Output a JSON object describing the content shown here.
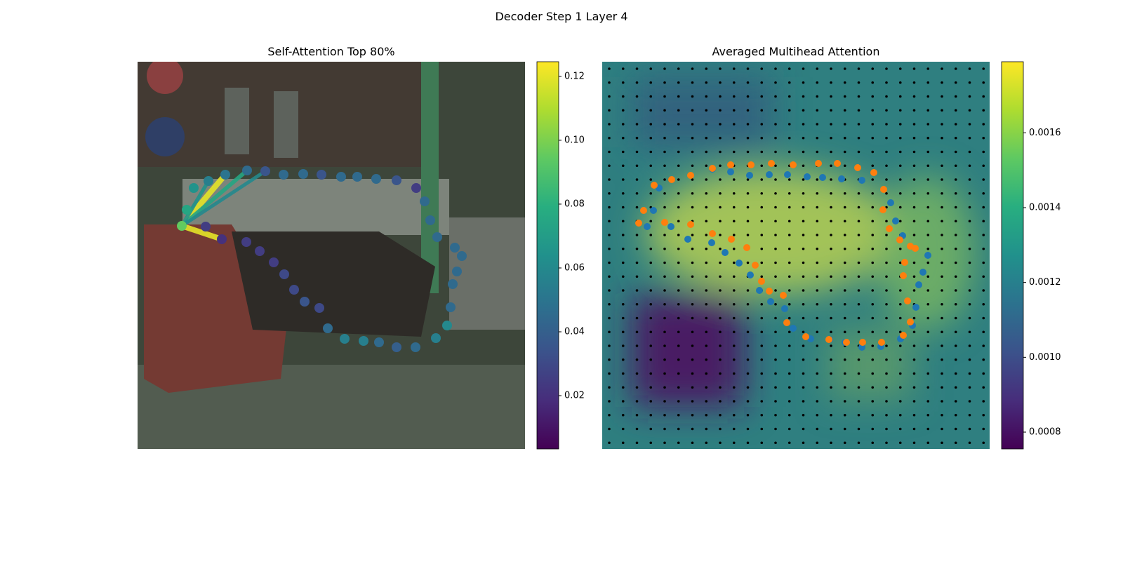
{
  "title": "Decoder Step 1 Layer 4",
  "chart_data": [
    {
      "type": "attention-scatter",
      "title": "Self-Attention Top 80%",
      "xlim": [
        0,
        552
      ],
      "ylim": [
        552,
        0
      ],
      "x": [
        63,
        70,
        80,
        101,
        125,
        156,
        182,
        208,
        236,
        262,
        290,
        313,
        340,
        369,
        397,
        409,
        417,
        427,
        452,
        462,
        455,
        449,
        446,
        441,
        425,
        396,
        369,
        344,
        322,
        295,
        271,
        259,
        238,
        223,
        209,
        194,
        174,
        155,
        120,
        97
      ],
      "y": [
        234,
        211,
        180,
        170,
        161,
        155,
        156,
        161,
        160,
        161,
        164,
        164,
        167,
        169,
        180,
        199,
        226,
        250,
        265,
        277,
        299,
        317,
        350,
        376,
        394,
        407,
        407,
        400,
        398,
        395,
        380,
        351,
        342,
        325,
        303,
        286,
        270,
        257,
        253,
        235
      ],
      "values": [
        0.095,
        0.075,
        0.065,
        0.055,
        0.05,
        0.045,
        0.035,
        0.045,
        0.045,
        0.035,
        0.045,
        0.045,
        0.045,
        0.035,
        0.025,
        0.045,
        0.045,
        0.045,
        0.045,
        0.045,
        0.045,
        0.045,
        0.045,
        0.06,
        0.055,
        0.045,
        0.04,
        0.045,
        0.055,
        0.055,
        0.045,
        0.03,
        0.035,
        0.03,
        0.03,
        0.025,
        0.025,
        0.025,
        0.02,
        0.025
      ],
      "edges": [
        {
          "to": 38,
          "value": 0.12
        },
        {
          "to": 4,
          "value": 0.12
        },
        {
          "to": 5,
          "value": 0.075
        },
        {
          "to": 3,
          "value": 0.065
        },
        {
          "to": 6,
          "value": 0.06
        }
      ],
      "colorbar": {
        "clim": [
          0.0033,
          0.1246
        ],
        "ticks": [
          0.02,
          0.04,
          0.06,
          0.08,
          {
            "value": 0.1,
            "label": "0.10"
          },
          0.12
        ]
      }
    },
    {
      "type": "attention-heatmap",
      "title": "Averaged Multihead Attention",
      "xlim": [
        0,
        552
      ],
      "ylim": [
        552,
        0
      ],
      "series": [
        {
          "color": "#1f77b4",
          "x": [
            64,
            73,
            81,
            99,
            157,
            183,
            210,
            238,
            264,
            292,
            314,
            341,
            370,
            411,
            418,
            428,
            464,
            457,
            451,
            447,
            442,
            425,
            397,
            370,
            346,
            324,
            297,
            272,
            260,
            240,
            224,
            211,
            195,
            175,
            156,
            122,
            98
          ],
          "y": [
            235,
            212,
            180,
            168,
            153,
            157,
            162,
            161,
            161,
            164,
            165,
            167,
            169,
            201,
            227,
            248,
            276,
            300,
            318,
            350,
            376,
            395,
            406,
            407,
            400,
            396,
            395,
            380,
            352,
            342,
            326,
            304,
            287,
            272,
            258,
            253,
            235
          ]
        },
        {
          "color": "#ff7f0e",
          "x": [
            52,
            59,
            74,
            99,
            126,
            157,
            183,
            212,
            241,
            272,
            308,
            335,
            364,
            387,
            401,
            400,
            409,
            424,
            439,
            446,
            431,
            429,
            435,
            439,
            429,
            398,
            371,
            348,
            323,
            290,
            263,
            258,
            238,
            227,
            218,
            206,
            184,
            157,
            126,
            89
          ],
          "y": [
            230,
            212,
            176,
            168,
            162,
            152,
            147,
            147,
            145,
            147,
            145,
            145,
            151,
            158,
            182,
            211,
            238,
            254,
            263,
            266,
            286,
            305,
            341,
            371,
            390,
            400,
            400,
            400,
            396,
            392,
            372,
            333,
            327,
            313,
            290,
            265,
            253,
            245,
            232,
            229
          ]
        }
      ],
      "colorbar": {
        "clim": [
          0.000755,
          0.00179
        ],
        "ticks": [
          0.0008,
          {
            "value": 0.001,
            "label": "0.0010"
          },
          0.0012,
          0.0014,
          0.0016
        ]
      }
    }
  ]
}
